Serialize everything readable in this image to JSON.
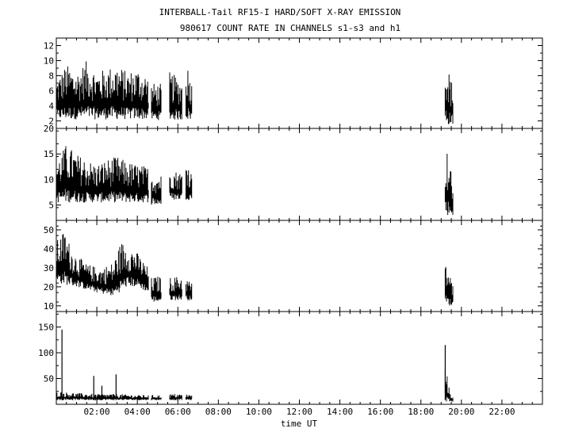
{
  "title": "INTERBALL-Tail RF15-I HARD/SOFT X-RAY EMISSION",
  "subtitle": "980617  COUNT RATE IN CHANNELS s1-s3 and h1",
  "chart_data": {
    "type": "line",
    "x_unit": "hours UT",
    "xlabel": "time UT",
    "xlim": [
      0,
      24
    ],
    "x_ticks": [
      {
        "value": 2,
        "label": "02:00"
      },
      {
        "value": 4,
        "label": "04:00"
      },
      {
        "value": 6,
        "label": "06:00"
      },
      {
        "value": 8,
        "label": "08:00"
      },
      {
        "value": 10,
        "label": "10:00"
      },
      {
        "value": 12,
        "label": "12:00"
      },
      {
        "value": 14,
        "label": "14:00"
      },
      {
        "value": 16,
        "label": "16:00"
      },
      {
        "value": 18,
        "label": "18:00"
      },
      {
        "value": 20,
        "label": "20:00"
      },
      {
        "value": 22,
        "label": "22:00"
      }
    ],
    "panels": [
      {
        "channel": "s1",
        "ylim": [
          1,
          13
        ],
        "y_ticks": [
          2,
          4,
          6,
          8,
          10,
          12
        ],
        "segments": [
          {
            "x0": 0.0,
            "x1": 4.55,
            "base": 2.2,
            "peaks": [
              [
                0.0,
                7.5
              ],
              [
                0.5,
                9.5
              ],
              [
                1.0,
                8.5
              ],
              [
                1.5,
                10.0
              ],
              [
                2.0,
                8.5
              ],
              [
                2.5,
                9.0
              ],
              [
                3.0,
                9.5
              ],
              [
                3.5,
                8.5
              ],
              [
                4.0,
                9.0
              ],
              [
                4.55,
                8.0
              ]
            ]
          },
          {
            "x0": 4.7,
            "x1": 5.2,
            "base": 2.1,
            "peaks": [
              [
                4.7,
                7.0
              ],
              [
                5.2,
                7.0
              ]
            ]
          },
          {
            "x0": 5.6,
            "x1": 6.2,
            "base": 2.1,
            "peaks": [
              [
                5.6,
                8.5
              ],
              [
                6.2,
                7.5
              ]
            ]
          },
          {
            "x0": 6.4,
            "x1": 6.7,
            "base": 2.1,
            "peaks": [
              [
                6.4,
                10.5
              ],
              [
                6.7,
                7.0
              ]
            ]
          },
          {
            "x0": 19.2,
            "x1": 19.6,
            "base": 1.5,
            "peaks": [
              [
                19.2,
                11.5
              ],
              [
                19.35,
                9.0
              ],
              [
                19.6,
                6.5
              ]
            ]
          }
        ]
      },
      {
        "channel": "s2",
        "ylim": [
          2,
          20
        ],
        "y_ticks": [
          5,
          10,
          15,
          20
        ],
        "segments": [
          {
            "x0": 0.0,
            "x1": 4.55,
            "base": 5.5,
            "peaks": [
              [
                0.0,
                13.5
              ],
              [
                0.5,
                17.0
              ],
              [
                1.0,
                15.0
              ],
              [
                1.5,
                14.0
              ],
              [
                2.0,
                13.0
              ],
              [
                2.5,
                14.0
              ],
              [
                3.0,
                14.5
              ],
              [
                3.5,
                13.5
              ],
              [
                4.0,
                13.0
              ],
              [
                4.55,
                12.5
              ]
            ]
          },
          {
            "x0": 4.7,
            "x1": 5.2,
            "base": 5.0,
            "peaks": [
              [
                4.7,
                11.5
              ],
              [
                5.2,
                11.0
              ]
            ]
          },
          {
            "x0": 5.6,
            "x1": 6.2,
            "base": 6.0,
            "peaks": [
              [
                5.6,
                12.0
              ],
              [
                6.2,
                11.5
              ]
            ]
          },
          {
            "x0": 6.4,
            "x1": 6.7,
            "base": 6.0,
            "peaks": [
              [
                6.4,
                14.5
              ],
              [
                6.7,
                11.0
              ]
            ]
          },
          {
            "x0": 19.2,
            "x1": 19.6,
            "base": 3.0,
            "peaks": [
              [
                19.2,
                17.0
              ],
              [
                19.35,
                15.0
              ],
              [
                19.6,
                9.0
              ]
            ]
          }
        ]
      },
      {
        "channel": "s3",
        "ylim": [
          7,
          55
        ],
        "y_ticks": [
          10,
          20,
          30,
          40,
          50
        ],
        "segments": [
          {
            "x0": 0.0,
            "x1": 4.55,
            "base_points": [
              [
                0.0,
                22.0
              ],
              [
                1.0,
                20.0
              ],
              [
                2.0,
                17.0
              ],
              [
                2.8,
                15.0
              ],
              [
                3.5,
                20.0
              ],
              [
                4.0,
                20.0
              ],
              [
                4.55,
                17.0
              ]
            ],
            "peak_points": [
              [
                0.0,
                44.0
              ],
              [
                0.4,
                50.0
              ],
              [
                0.8,
                39.0
              ],
              [
                1.5,
                32.0
              ],
              [
                2.2,
                30.0
              ],
              [
                2.8,
                33.0
              ],
              [
                3.2,
                44.0
              ],
              [
                3.6,
                42.0
              ],
              [
                4.0,
                38.0
              ],
              [
                4.55,
                30.0
              ]
            ]
          },
          {
            "x0": 4.7,
            "x1": 5.2,
            "base": 12.0,
            "peaks": [
              [
                4.7,
                25.0
              ],
              [
                5.2,
                26.0
              ]
            ]
          },
          {
            "x0": 5.6,
            "x1": 6.2,
            "base": 13.0,
            "peaks": [
              [
                5.6,
                25.0
              ],
              [
                6.2,
                26.0
              ]
            ]
          },
          {
            "x0": 6.4,
            "x1": 6.7,
            "base": 13.0,
            "peaks": [
              [
                6.4,
                25.0
              ],
              [
                6.7,
                22.0
              ]
            ]
          },
          {
            "x0": 19.2,
            "x1": 19.6,
            "base": 10.0,
            "peaks": [
              [
                19.2,
                34.0
              ],
              [
                19.35,
                30.0
              ],
              [
                19.6,
                20.0
              ]
            ]
          }
        ]
      },
      {
        "channel": "h1",
        "ylim": [
          0,
          180
        ],
        "y_ticks": [
          50,
          100,
          150
        ],
        "segments": [
          {
            "x0": 0.0,
            "x1": 4.55,
            "base": 8.0,
            "peaks": [
              [
                0.0,
                25.0
              ],
              [
                1.0,
                22.0
              ],
              [
                2.0,
                20.0
              ],
              [
                3.0,
                20.0
              ],
              [
                4.0,
                18.0
              ],
              [
                4.55,
                18.0
              ]
            ]
          },
          {
            "x0": 4.7,
            "x1": 5.2,
            "base": 8.0,
            "peaks": [
              [
                4.7,
                18.0
              ],
              [
                5.2,
                18.0
              ]
            ]
          },
          {
            "x0": 5.6,
            "x1": 6.2,
            "base": 8.0,
            "peaks": [
              [
                5.6,
                20.0
              ],
              [
                6.2,
                20.0
              ]
            ]
          },
          {
            "x0": 6.4,
            "x1": 6.7,
            "base": 8.0,
            "peaks": [
              [
                6.4,
                20.0
              ],
              [
                6.7,
                18.0
              ]
            ]
          },
          {
            "x0": 19.2,
            "x1": 19.6,
            "base": 5.0,
            "peaks": [
              [
                19.2,
                80.0
              ],
              [
                19.4,
                30.0
              ],
              [
                19.6,
                12.0
              ]
            ]
          }
        ],
        "spikes": [
          {
            "x": 0.28,
            "y": 145
          },
          {
            "x": 1.85,
            "y": 55
          },
          {
            "x": 2.25,
            "y": 36
          },
          {
            "x": 2.95,
            "y": 58
          },
          {
            "x": 19.2,
            "y": 115
          }
        ]
      }
    ]
  }
}
